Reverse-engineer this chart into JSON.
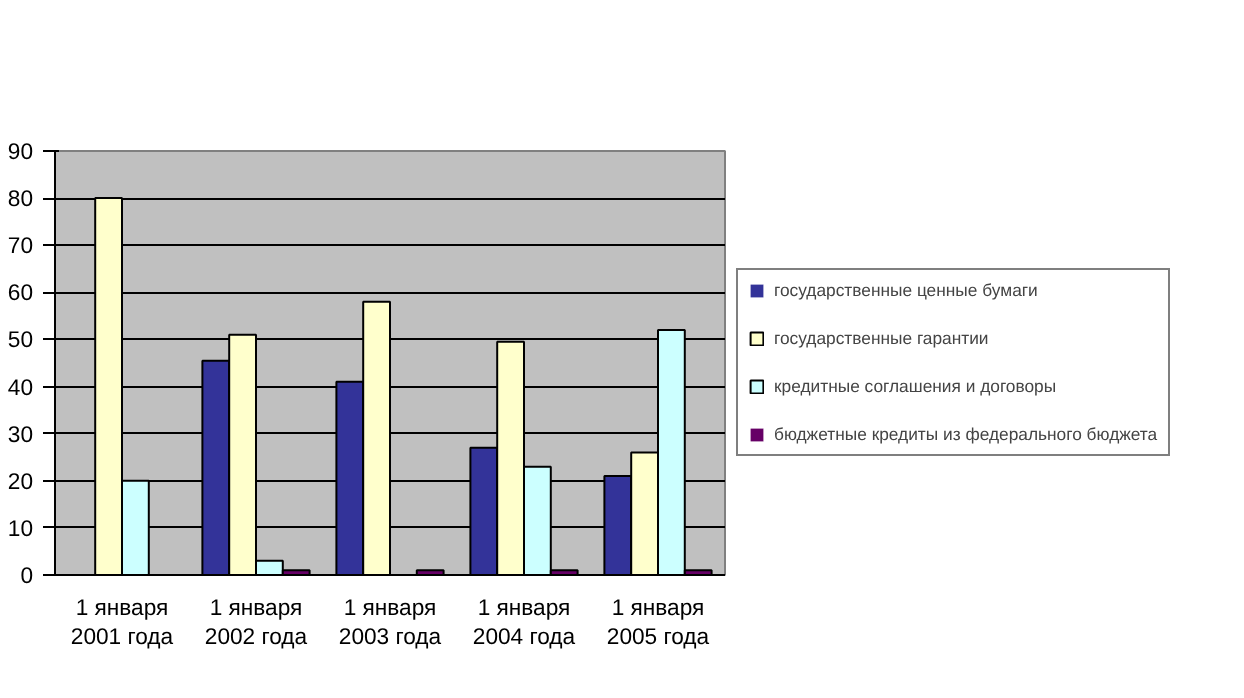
{
  "chart_data": {
    "type": "bar",
    "categories": [
      "1 января\n2001 года",
      "1 января\n2002 года",
      "1 января\n2003 года",
      "1 января\n2004 года",
      "1 января\n2005 года"
    ],
    "series": [
      {
        "name": "государственные ценные бумаги",
        "color": "#333399",
        "values": [
          0,
          45.5,
          41,
          27,
          21
        ]
      },
      {
        "name": "государственные гарантии",
        "color": "#ffffcc",
        "values": [
          80,
          51,
          58,
          49.5,
          26
        ]
      },
      {
        "name": "кредитные соглашения и договоры",
        "color": "#ccffff",
        "values": [
          20,
          3,
          0,
          23,
          52
        ]
      },
      {
        "name": "бюджетные кредиты из федерального бюджета",
        "color": "#660066",
        "values": [
          0,
          1,
          1,
          1,
          1
        ]
      }
    ],
    "ylim": [
      0,
      90
    ],
    "yticks": [
      0,
      10,
      20,
      30,
      40,
      50,
      60,
      70,
      80,
      90
    ],
    "grid": "y",
    "legend": "right"
  }
}
